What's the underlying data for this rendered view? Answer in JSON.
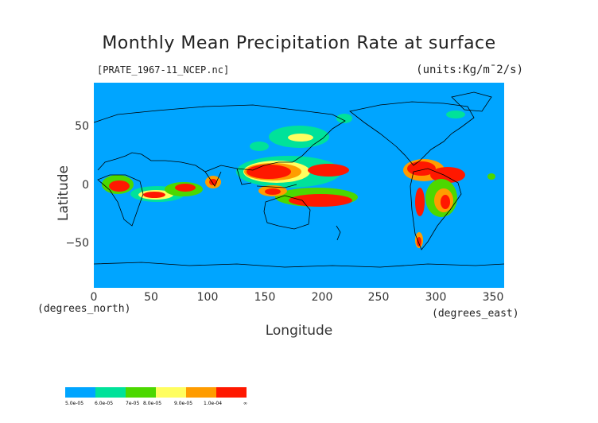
{
  "title": "Monthly Mean Precipitation Rate at surface",
  "file_label": "[PRATE_1967-11_NCEP.nc]",
  "units": "(units:Kg/m¯2/s)",
  "axes": {
    "y_label": "Latitude",
    "x_label": "Longitude",
    "y_ticks": [
      "50",
      "0",
      "−50"
    ],
    "x_ticks": [
      "0",
      "50",
      "100",
      "150",
      "200",
      "250",
      "300",
      "350"
    ],
    "y_unit": "(degrees_north)",
    "x_unit": "(degrees_east)"
  },
  "map": {
    "lon_range": [
      0,
      360
    ],
    "lat_range": [
      -90,
      90
    ],
    "ocean_color": "#00a5ff",
    "coastline_color": "#000000"
  },
  "colorbar": {
    "colors": [
      "#00a5ff",
      "#00e29a",
      "#4cd800",
      "#fffe60",
      "#ff9c00",
      "#ff1800"
    ],
    "labels": [
      "5.0e-05",
      "6.0e-05",
      "7e-05",
      "8.0e-05",
      "9.0e-05",
      "1.0e-04",
      "∞"
    ]
  }
}
